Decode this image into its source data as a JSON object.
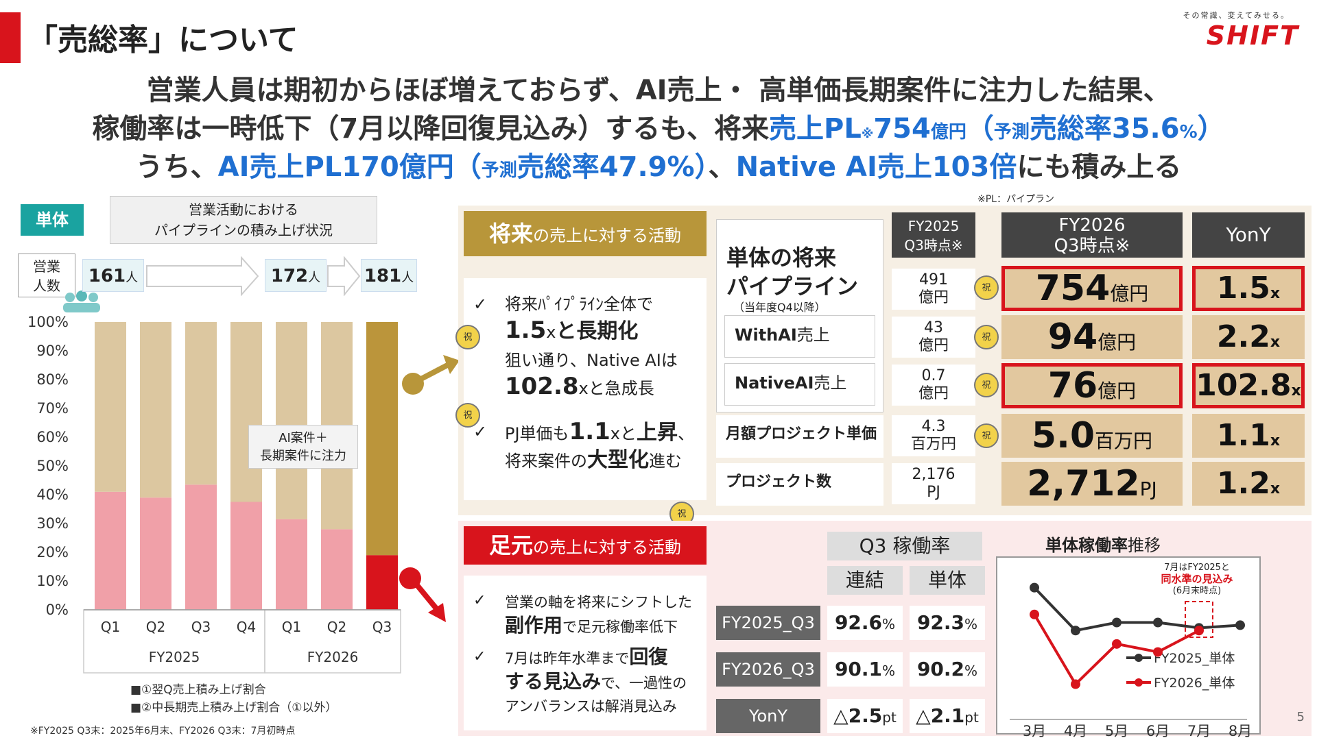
{
  "header": {
    "title": "「売総率」について",
    "logo_tagline": "その常識、変えてみせる。",
    "logo": "SHIFT"
  },
  "headline": {
    "line1": "営業人員は期初からほぼ増えておらず、AI売上・ 高単価長期案件に注力した結果、",
    "line2_a": "稼働率は一時低下（7月以降回復見込み）するも、将来",
    "line2_b": "売上PL",
    "line2_c": "※",
    "line2_d": "754",
    "line2_e": "億円",
    "line2_f": "（",
    "line2_g": "予測",
    "line2_h": "売総率35.6",
    "line2_i": "%",
    "line2_j": "）",
    "line3_a": "うち、",
    "line3_b": "AI売上PL170億円（",
    "line3_c": "予測",
    "line3_d": "売総率47.9%）",
    "line3_e": "、",
    "line3_f": "Native AI売上103倍",
    "line3_g": "にも積み上る"
  },
  "pl_note": "※PL：パイプラン",
  "left": {
    "tag": "単体",
    "caption_line1": "営業活動における",
    "caption_line2": "パイプラインの積み上げ状況",
    "sales_label_line1": "営業",
    "sales_label_line2": "人数",
    "counts": [
      {
        "value": "161",
        "unit": "人"
      },
      {
        "value": "172",
        "unit": "人"
      },
      {
        "value": "181",
        "unit": "人"
      }
    ],
    "callout_line1": "AI案件＋",
    "callout_line2": "長期案件に注力",
    "legend1": "■①翌Q売上積み上げ割合",
    "legend2": "■②中長期売上積み上げ割合（①以外）",
    "footnote": "※FY2025 Q3末：2025年6月末、FY2026 Q3末：7月初時点"
  },
  "chart_data": {
    "type": "bar",
    "stacked": true,
    "categories": [
      "Q1",
      "Q2",
      "Q3",
      "Q4",
      "Q1",
      "Q2",
      "Q3"
    ],
    "groups": [
      {
        "label": "FY2025",
        "count": 4
      },
      {
        "label": "FY2026",
        "count": 3
      }
    ],
    "series": [
      {
        "name": "①翌Q売上積み上げ割合",
        "values": [
          41,
          39,
          43.5,
          37.5,
          31.5,
          28,
          19
        ]
      },
      {
        "name": "②中長期売上積み上げ割合（①以外）",
        "values": [
          59,
          61,
          56.5,
          62.5,
          68.5,
          72,
          81
        ]
      }
    ],
    "yticks": [
      "0%",
      "10%",
      "20%",
      "30%",
      "40%",
      "50%",
      "60%",
      "70%",
      "80%",
      "90%",
      "100%"
    ],
    "ylim": [
      0,
      100
    ],
    "colors": {
      "s1": "#f0a0a8",
      "s2": "#dcc7a0",
      "s1_last": "#d8141c",
      "s2_last": "#bb953b"
    }
  },
  "future": {
    "header_bold": "将来",
    "header_rest": "の売上に対する活動",
    "b1_l1": "将来ﾊﾟｲﾌﾟﾗｲﾝ全体で",
    "b1_l2_big": "1.5",
    "b1_l2_x": "x",
    "b1_l2_rest": "と長期化",
    "b1_l3": "狙い通り、Native AIは",
    "b1_l4_big": "102.8",
    "b1_l4_rest": "xと急成長",
    "b2_l1_a": "PJ単価も",
    "b2_l1_big": "1.1",
    "b2_l1_x": "x",
    "b2_l1_b": "と",
    "b2_l1_c": "上昇",
    "b2_l1_d": "、",
    "b2_l2_a": "将来案件の",
    "b2_l2_b": "大型化",
    "b2_l2_c": "進む",
    "check": "✓",
    "stamp": "祝"
  },
  "pipeline": {
    "title_l1": "単体の将来",
    "title_l2": "パイプライン",
    "title_note": "（当年度Q4以降）",
    "withai_a": "WithAI",
    "withai_b": "売上",
    "nativeai_a": "NativeAI",
    "nativeai_b": "売上",
    "monthly": "月額プロジェクト単価",
    "pj_count": "プロジェクト数",
    "h_fy25_l1": "FY2025",
    "h_fy25_l2": "Q3時点※",
    "h_fy26_l1": "FY2026",
    "h_fy26_l2": "Q3時点※",
    "h_yony": "YonY",
    "fy25": [
      {
        "l1": "491",
        "l2": "億円"
      },
      {
        "l1": "43",
        "l2": "億円"
      },
      {
        "l1": "0.7",
        "l2": "億円"
      },
      {
        "l1": "4.3",
        "l2": "百万円"
      },
      {
        "l1": "2,176",
        "l2": "PJ"
      }
    ],
    "fy26": [
      {
        "v": "754",
        "u": "億円"
      },
      {
        "v": "94",
        "u": "億円"
      },
      {
        "v": "76",
        "u": "億円"
      },
      {
        "v": "5.0",
        "u": "百万円"
      },
      {
        "v": "2,712",
        "u": "PJ"
      }
    ],
    "yony": [
      {
        "v": "1.5",
        "u": "x"
      },
      {
        "v": "2.2",
        "u": "x"
      },
      {
        "v": "102.8",
        "u": "x"
      },
      {
        "v": "1.1",
        "u": "x"
      },
      {
        "v": "1.2",
        "u": "x"
      }
    ]
  },
  "current": {
    "header_bold": "足元",
    "header_rest": "の売上に対する活動",
    "b1_l1": "営業の軸を将来にシフトした",
    "b1_l2_a": "副作用",
    "b1_l2_b": "で足元稼働率低下",
    "b2_l1_a": "7月は昨年水準まで",
    "b2_l1_b": "回復",
    "b2_l2_a": "する見込み",
    "b2_l2_b": "で、一過性の",
    "b2_l3": "アンバランスは解消見込み"
  },
  "utilization": {
    "title": "Q3 稼働率",
    "col1": "連結",
    "col2": "単体",
    "rows": [
      {
        "label": "FY2025_Q3",
        "a": "92.6",
        "b": "92.3",
        "unit": "%"
      },
      {
        "label": "FY2026_Q3",
        "a": "90.1",
        "b": "90.2",
        "unit": "%"
      },
      {
        "label": "YonY",
        "a": "△2.5",
        "b": "△2.1",
        "unit": "pt"
      }
    ]
  },
  "mini_chart": {
    "title_bold": "単体稼働率",
    "title_rest": "推移",
    "note_l1": "7月はFY2025と",
    "note_l2": "同水準の見込み",
    "note_l3": "(6月末時点)",
    "months": [
      "3月",
      "4月",
      "5月",
      "6月",
      "7月",
      "8月"
    ],
    "series": [
      {
        "name": "FY2025_単体",
        "color": "#333333",
        "values": [
          93.2,
          91.6,
          91.9,
          91.9,
          91.7,
          91.8
        ]
      },
      {
        "name": "FY2026_単体",
        "color": "#d8141c",
        "values": [
          92.2,
          89.6,
          91.1,
          90.8,
          91.6,
          null
        ]
      }
    ]
  },
  "page_number": "5"
}
